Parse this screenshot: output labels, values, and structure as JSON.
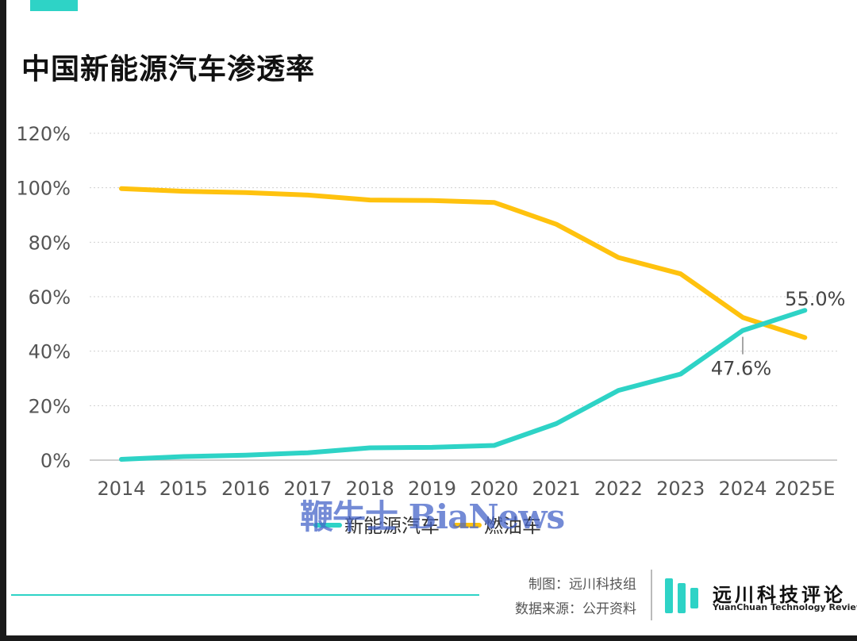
{
  "title": "中国新能源汽车渗透率",
  "chart_data": {
    "type": "line",
    "title": "中国新能源汽车渗透率",
    "xlabel": "",
    "ylabel": "",
    "categories": [
      "2014",
      "2015",
      "2016",
      "2017",
      "2018",
      "2019",
      "2020",
      "2021",
      "2022",
      "2023",
      "2024",
      "2025E"
    ],
    "ylim": [
      0,
      120
    ],
    "yticks": [
      "0%",
      "20%",
      "40%",
      "60%",
      "80%",
      "100%",
      "120%"
    ],
    "grid": true,
    "legend_position": "bottom",
    "series": [
      {
        "name": "新能源汽车",
        "color": "#2ed3c6",
        "values": [
          0.3,
          1.3,
          1.8,
          2.7,
          4.5,
          4.7,
          5.4,
          13.4,
          25.6,
          31.6,
          47.6,
          55.0
        ]
      },
      {
        "name": "燃油车",
        "color": "#ffc20e",
        "values": [
          99.7,
          98.7,
          98.2,
          97.3,
          95.5,
          95.3,
          94.6,
          86.6,
          74.4,
          68.4,
          52.4,
          45.0
        ]
      }
    ],
    "annotations": [
      {
        "text": "55.0%",
        "category": "2025E",
        "series": 0
      },
      {
        "text": "47.6%",
        "category": "2024",
        "series": 0
      }
    ]
  },
  "watermark": "鞭牛士 BiaNews",
  "footer": {
    "made_by": "制图：远川科技组",
    "source": "数据来源：公开资料"
  },
  "brand": {
    "name_cn": "远川科技评论",
    "name_en": "YuanChuan Technology Review",
    "color": "#2ed3c6"
  }
}
